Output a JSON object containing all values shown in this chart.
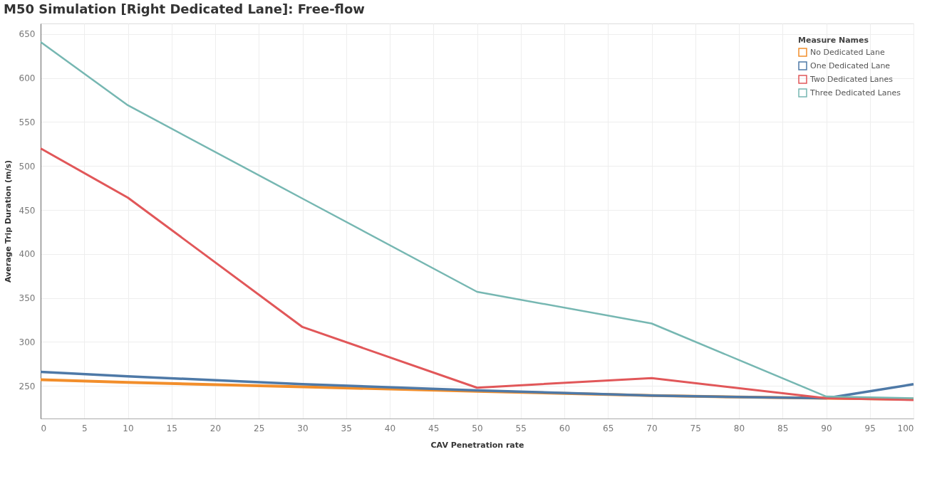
{
  "chart_data": {
    "type": "line",
    "title": "M50 Simulation [Right Dedicated Lane]: Free-flow",
    "xlabel": "CAV Penetration rate",
    "ylabel": "Average Trip Duration (m/s)",
    "legend_title": "Measure Names",
    "x": [
      0,
      10,
      30,
      50,
      70,
      90,
      100
    ],
    "series": [
      {
        "name": "No Dedicated Lane",
        "color": "#f28e2b",
        "values": [
          257,
          254,
          249,
          244,
          239,
          236,
          235
        ]
      },
      {
        "name": "One Dedicated Lane",
        "color": "#4e79a7",
        "values": [
          266,
          261,
          252,
          245,
          239,
          236,
          252
        ]
      },
      {
        "name": "Two Dedicated Lanes",
        "color": "#e15759",
        "values": [
          520,
          464,
          317,
          248,
          259,
          236,
          234
        ]
      },
      {
        "name": "Three Dedicated Lanes",
        "color": "#76b7b2",
        "values": [
          641,
          569,
          463,
          357,
          321,
          238,
          236
        ]
      }
    ],
    "xlim": [
      0,
      100
    ],
    "xticks": [
      0,
      5,
      10,
      15,
      20,
      25,
      30,
      35,
      40,
      45,
      50,
      55,
      60,
      65,
      70,
      75,
      80,
      85,
      90,
      95,
      100
    ],
    "ylim": [
      213,
      662
    ],
    "yticks": [
      250,
      300,
      350,
      400,
      450,
      500,
      550,
      600,
      650
    ],
    "grid": true,
    "legend": "top right",
    "marker": "none",
    "line_style": "solid"
  }
}
